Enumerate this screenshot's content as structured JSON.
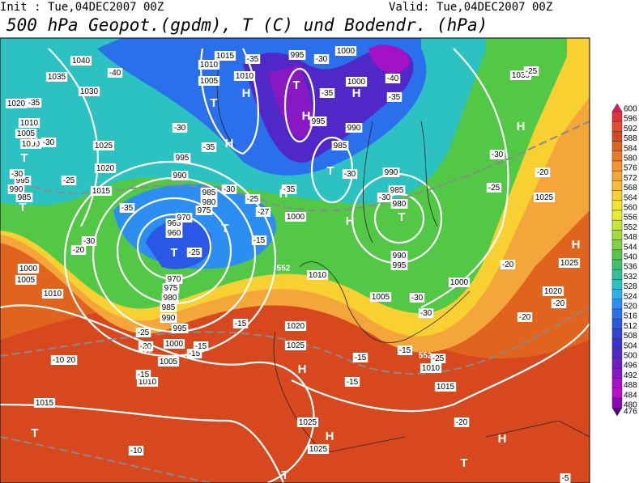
{
  "header": {
    "init": "Init : Tue,04DEC2007 00Z",
    "valid": "Valid: Tue,04DEC2007 00Z",
    "title": "500 hPa Geopot.(gpdm), T (C) und Bodendr. (hPa)"
  },
  "map": {
    "pressure_labels": [
      1040,
      1035,
      1030,
      1025,
      1020,
      1015,
      1020,
      1010,
      1005,
      1000,
      995,
      990,
      985,
      1000,
      1005,
      1010,
      1015,
      1010,
      1005,
      1000,
      995,
      990,
      985,
      980,
      975,
      970,
      965,
      960,
      970,
      975,
      980,
      985,
      990,
      995,
      1005,
      1010,
      1015,
      1010,
      995,
      1000,
      1000,
      995,
      990,
      985,
      990,
      985,
      980,
      990,
      995,
      1000,
      1000,
      1005,
      1010,
      1020,
      1025,
      1025,
      1025,
      1015,
      1010,
      1025,
      1030,
      1025,
      1020
    ],
    "temperature_labels": [
      -40,
      -35,
      -30,
      -40,
      -35,
      -35,
      -35,
      -30,
      -30,
      -35,
      -30,
      -25,
      -35,
      -30,
      -27,
      -25,
      -35,
      -30,
      -30,
      -20,
      -30,
      -15,
      -25,
      -20,
      -25,
      -30,
      -25,
      -20,
      -20,
      -20,
      -30,
      -30,
      -25,
      -20,
      -25,
      -20,
      -15,
      -15,
      -15,
      -10,
      -15,
      -15,
      -15,
      -15,
      -10,
      -20,
      -5
    ],
    "contour_labels": [
      552,
      552,
      552
    ],
    "centers": [
      "T",
      "T",
      "H",
      "H",
      "T",
      "H",
      "T",
      "H",
      "H",
      "T",
      "H",
      "T",
      "T",
      "H",
      "T",
      "H",
      "H",
      "H",
      "H",
      "T",
      "T",
      "H",
      "T"
    ]
  },
  "colorbar": {
    "levels": [
      600,
      596,
      592,
      588,
      584,
      580,
      576,
      572,
      568,
      564,
      560,
      556,
      552,
      548,
      544,
      540,
      536,
      532,
      528,
      524,
      520,
      516,
      512,
      508,
      504,
      500,
      496,
      492,
      488,
      484,
      480,
      476
    ],
    "colors": [
      "#d81e6a",
      "#e0323a",
      "#e84a2a",
      "#d8481e",
      "#e0641e",
      "#ec7a22",
      "#f29432",
      "#f4a63a",
      "#f6bc36",
      "#f8d032",
      "#f4e230",
      "#e6ec30",
      "#c8e636",
      "#a0dc3c",
      "#7cd43e",
      "#52c846",
      "#40c070",
      "#34c09a",
      "#2cc2c2",
      "#30b0e8",
      "#2c8ef0",
      "#2a70ec",
      "#2a58e6",
      "#2e42dc",
      "#3a30d0",
      "#5028c8",
      "#6a20c4",
      "#8818c4",
      "#a412c6",
      "#b80ec4",
      "#8a0ab0",
      "#5a0488"
    ]
  }
}
